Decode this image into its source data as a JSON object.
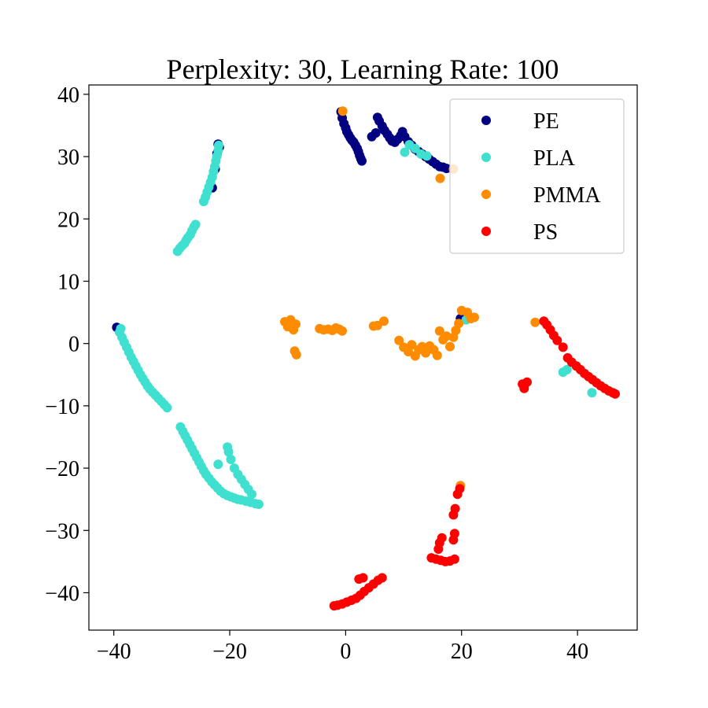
{
  "chart_data": {
    "type": "scatter",
    "title": "Perplexity: 30, Learning Rate: 100",
    "xlabel": "",
    "ylabel": "",
    "xlim": [
      -44.3,
      50.3
    ],
    "ylim": [
      -46.0,
      41.5
    ],
    "x_ticks": [
      -40,
      -20,
      0,
      20,
      40
    ],
    "x_tick_labels": [
      "−40",
      "−20",
      "0",
      "20",
      "40"
    ],
    "y_ticks": [
      -40,
      -30,
      -20,
      -10,
      0,
      10,
      20,
      30,
      40
    ],
    "y_tick_labels": [
      "−40",
      "−30",
      "−20",
      "−10",
      "0",
      "10",
      "20",
      "30",
      "40"
    ],
    "grid": false,
    "legend_position": "top-right",
    "series": [
      {
        "name": "PE",
        "color": "#000080",
        "points": [
          [
            -0.8,
            37.2
          ],
          [
            -0.6,
            36.2
          ],
          [
            -0.3,
            35.3
          ],
          [
            0.0,
            34.6
          ],
          [
            0.2,
            34.0
          ],
          [
            0.5,
            33.5
          ],
          [
            0.8,
            33.0
          ],
          [
            1.1,
            32.6
          ],
          [
            1.4,
            32.3
          ],
          [
            1.7,
            31.8
          ],
          [
            2.0,
            31.3
          ],
          [
            2.2,
            30.8
          ],
          [
            2.4,
            30.2
          ],
          [
            2.6,
            29.7
          ],
          [
            2.8,
            29.3
          ],
          [
            4.5,
            33.2
          ],
          [
            5.2,
            33.8
          ],
          [
            5.5,
            36.3
          ],
          [
            5.8,
            35.7
          ],
          [
            6.3,
            34.9
          ],
          [
            6.7,
            34.2
          ],
          [
            7.2,
            33.6
          ],
          [
            7.6,
            33.0
          ],
          [
            8.0,
            32.5
          ],
          [
            8.5,
            32.3
          ],
          [
            9.0,
            32.8
          ],
          [
            9.5,
            33.4
          ],
          [
            9.8,
            34.0
          ],
          [
            10.2,
            33.2
          ],
          [
            10.8,
            32.4
          ],
          [
            11.4,
            31.8
          ],
          [
            12.0,
            31.2
          ],
          [
            12.6,
            30.8
          ],
          [
            13.2,
            30.4
          ],
          [
            13.8,
            30.0
          ],
          [
            14.4,
            29.6
          ],
          [
            15.0,
            29.2
          ],
          [
            15.6,
            28.8
          ],
          [
            16.2,
            28.4
          ],
          [
            16.8,
            28.3
          ],
          [
            17.4,
            28.1
          ],
          [
            -23.0,
            25.0
          ],
          [
            -22.5,
            28.0
          ],
          [
            -22.2,
            30.5
          ],
          [
            -22.0,
            32.0
          ],
          [
            -39.5,
            2.6
          ],
          [
            19.8,
            4.0
          ],
          [
            -21.8,
            31.5
          ]
        ]
      },
      {
        "name": "PLA",
        "color": "#40E0D0",
        "points": [
          [
            -29.0,
            14.8
          ],
          [
            -28.6,
            15.3
          ],
          [
            -28.2,
            15.7
          ],
          [
            -27.8,
            16.1
          ],
          [
            -27.5,
            16.6
          ],
          [
            -27.2,
            17.0
          ],
          [
            -26.8,
            17.5
          ],
          [
            -26.5,
            18.1
          ],
          [
            -26.2,
            18.7
          ],
          [
            -25.9,
            19.1
          ],
          [
            -24.5,
            22.8
          ],
          [
            -24.2,
            23.5
          ],
          [
            -23.9,
            24.3
          ],
          [
            -23.6,
            25.1
          ],
          [
            -23.3,
            25.9
          ],
          [
            -23.0,
            26.7
          ],
          [
            -22.8,
            27.6
          ],
          [
            -22.6,
            28.4
          ],
          [
            -22.4,
            29.3
          ],
          [
            -22.2,
            30.1
          ],
          [
            -22.0,
            31.0
          ],
          [
            -21.9,
            31.8
          ],
          [
            -39.0,
            1.8
          ],
          [
            -38.6,
            1.0
          ],
          [
            -38.2,
            0.2
          ],
          [
            -37.8,
            -0.6
          ],
          [
            -37.4,
            -1.4
          ],
          [
            -37.0,
            -2.2
          ],
          [
            -36.6,
            -2.9
          ],
          [
            -36.2,
            -3.6
          ],
          [
            -35.8,
            -4.3
          ],
          [
            -35.4,
            -5.0
          ],
          [
            -35.0,
            -5.6
          ],
          [
            -34.6,
            -6.2
          ],
          [
            -34.2,
            -6.8
          ],
          [
            -33.8,
            -7.3
          ],
          [
            -33.3,
            -7.8
          ],
          [
            -32.8,
            -8.3
          ],
          [
            -32.3,
            -8.8
          ],
          [
            -31.8,
            -9.3
          ],
          [
            -31.3,
            -9.8
          ],
          [
            -30.8,
            -10.3
          ],
          [
            -28.5,
            -13.4
          ],
          [
            -28.1,
            -14.1
          ],
          [
            -27.7,
            -14.8
          ],
          [
            -27.3,
            -15.5
          ],
          [
            -26.9,
            -16.2
          ],
          [
            -26.5,
            -16.9
          ],
          [
            -26.1,
            -17.6
          ],
          [
            -25.7,
            -18.3
          ],
          [
            -25.3,
            -19.0
          ],
          [
            -24.9,
            -19.7
          ],
          [
            -24.5,
            -20.4
          ],
          [
            -24.1,
            -21.0
          ],
          [
            -23.6,
            -21.6
          ],
          [
            -23.1,
            -22.2
          ],
          [
            -22.6,
            -22.7
          ],
          [
            -22.1,
            -23.2
          ],
          [
            -21.6,
            -23.7
          ],
          [
            -21.0,
            -24.1
          ],
          [
            -20.4,
            -24.4
          ],
          [
            -19.8,
            -24.6
          ],
          [
            -19.2,
            -24.8
          ],
          [
            -18.6,
            -25.0
          ],
          [
            -18.0,
            -25.1
          ],
          [
            -17.2,
            -25.3
          ],
          [
            -16.4,
            -25.5
          ],
          [
            -15.6,
            -25.7
          ],
          [
            -15.0,
            -25.8
          ],
          [
            -16.2,
            -24.2
          ],
          [
            -16.8,
            -23.4
          ],
          [
            -17.4,
            -22.6
          ],
          [
            -18.0,
            -21.8
          ],
          [
            -18.6,
            -21.0
          ],
          [
            -19.2,
            -20.0
          ],
          [
            -19.8,
            -18.6
          ],
          [
            -20.2,
            -17.4
          ],
          [
            -20.4,
            -16.6
          ],
          [
            -22.0,
            -19.4
          ],
          [
            10.2,
            30.7
          ],
          [
            11.0,
            31.9
          ],
          [
            12.0,
            31.3
          ],
          [
            13.0,
            30.4
          ],
          [
            14.0,
            30.1
          ],
          [
            20.8,
            3.8
          ],
          [
            37.5,
            -4.6
          ],
          [
            38.2,
            -4.2
          ],
          [
            42.5,
            -7.9
          ],
          [
            -38.8,
            2.4
          ]
        ]
      },
      {
        "name": "PMMA",
        "color": "#FF8C00",
        "points": [
          [
            -0.5,
            37.3
          ],
          [
            16.3,
            26.5
          ],
          [
            18.6,
            28.0
          ],
          [
            -10.5,
            3.5
          ],
          [
            -10.0,
            2.7
          ],
          [
            -9.5,
            3.8
          ],
          [
            -9.0,
            2.2
          ],
          [
            -8.6,
            3.1
          ],
          [
            -8.8,
            -1.2
          ],
          [
            -8.5,
            -1.8
          ],
          [
            -4.5,
            2.4
          ],
          [
            -3.8,
            2.2
          ],
          [
            -3.0,
            2.3
          ],
          [
            -2.3,
            2.1
          ],
          [
            -1.7,
            2.5
          ],
          [
            -1.1,
            2.3
          ],
          [
            -0.6,
            2.0
          ],
          [
            4.8,
            2.8
          ],
          [
            5.5,
            2.9
          ],
          [
            6.6,
            3.6
          ],
          [
            9.2,
            0.5
          ],
          [
            10.0,
            -0.6
          ],
          [
            10.8,
            -1.3
          ],
          [
            11.4,
            -0.2
          ],
          [
            12.0,
            -2.0
          ],
          [
            12.6,
            -1.0
          ],
          [
            13.2,
            -0.5
          ],
          [
            13.8,
            -1.5
          ],
          [
            14.5,
            -0.4
          ],
          [
            15.2,
            -1.0
          ],
          [
            15.8,
            -1.9
          ],
          [
            16.2,
            2.0
          ],
          [
            16.8,
            0.6
          ],
          [
            17.4,
            1.2
          ],
          [
            18.0,
            -0.5
          ],
          [
            18.6,
            1.0
          ],
          [
            19.0,
            2.1
          ],
          [
            19.5,
            3.2
          ],
          [
            20.0,
            5.3
          ],
          [
            21.0,
            5.0
          ],
          [
            21.6,
            4.0
          ],
          [
            22.2,
            4.2
          ],
          [
            19.8,
            -22.8
          ],
          [
            32.7,
            3.4
          ]
        ]
      },
      {
        "name": "PS",
        "color": "#FF0000",
        "points": [
          [
            34.2,
            3.6
          ],
          [
            34.7,
            3.0
          ],
          [
            35.3,
            2.2
          ],
          [
            35.9,
            1.3
          ],
          [
            36.5,
            0.5
          ],
          [
            37.5,
            -0.6
          ],
          [
            38.3,
            -2.3
          ],
          [
            39.0,
            -3.0
          ],
          [
            39.8,
            -3.6
          ],
          [
            40.5,
            -4.2
          ],
          [
            41.2,
            -4.8
          ],
          [
            41.9,
            -5.3
          ],
          [
            42.6,
            -5.8
          ],
          [
            43.3,
            -6.3
          ],
          [
            44.0,
            -6.8
          ],
          [
            44.7,
            -7.2
          ],
          [
            45.4,
            -7.6
          ],
          [
            46.1,
            -7.9
          ],
          [
            46.5,
            -8.1
          ],
          [
            30.5,
            -6.5
          ],
          [
            30.8,
            -7.2
          ],
          [
            31.3,
            -6.2
          ],
          [
            19.7,
            -23.3
          ],
          [
            19.3,
            -24.2
          ],
          [
            18.9,
            -26.5
          ],
          [
            18.6,
            -27.5
          ],
          [
            18.8,
            -30.5
          ],
          [
            18.6,
            -31.5
          ],
          [
            16.2,
            -32.0
          ],
          [
            16.0,
            -33.0
          ],
          [
            16.6,
            -31.2
          ],
          [
            14.8,
            -34.4
          ],
          [
            15.6,
            -34.6
          ],
          [
            16.4,
            -34.8
          ],
          [
            17.2,
            -35.0
          ],
          [
            18.0,
            -34.9
          ],
          [
            18.8,
            -34.6
          ],
          [
            6.3,
            -37.6
          ],
          [
            5.6,
            -38.0
          ],
          [
            4.8,
            -38.6
          ],
          [
            4.0,
            -39.2
          ],
          [
            3.2,
            -39.8
          ],
          [
            2.5,
            -40.4
          ],
          [
            1.8,
            -40.9
          ],
          [
            1.0,
            -41.2
          ],
          [
            0.2,
            -41.5
          ],
          [
            -0.6,
            -41.8
          ],
          [
            -1.4,
            -42.0
          ],
          [
            -2.0,
            -42.1
          ],
          [
            2.3,
            -37.8
          ],
          [
            3.0,
            -37.6
          ]
        ]
      }
    ]
  }
}
